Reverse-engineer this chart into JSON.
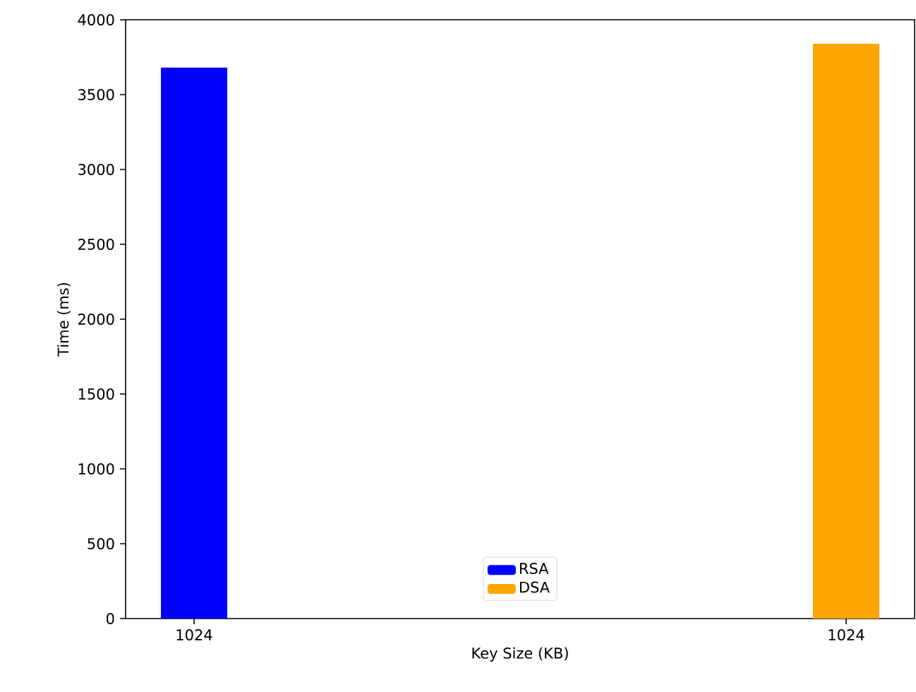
{
  "chart_data": {
    "type": "bar",
    "xlabel": "Key Size (KB)",
    "ylabel": "Time (ms)",
    "categories": [
      "1024",
      "1024"
    ],
    "series": [
      {
        "name": "RSA",
        "color": "#0000ff",
        "values": [
          3680,
          null
        ]
      },
      {
        "name": "DSA",
        "color": "#ffa500",
        "values": [
          null,
          3840
        ]
      }
    ],
    "ylim": [
      0,
      4000
    ],
    "yticks": [
      0,
      500,
      1000,
      1500,
      2000,
      2500,
      3000,
      3500,
      4000
    ],
    "legend": "bottom"
  }
}
